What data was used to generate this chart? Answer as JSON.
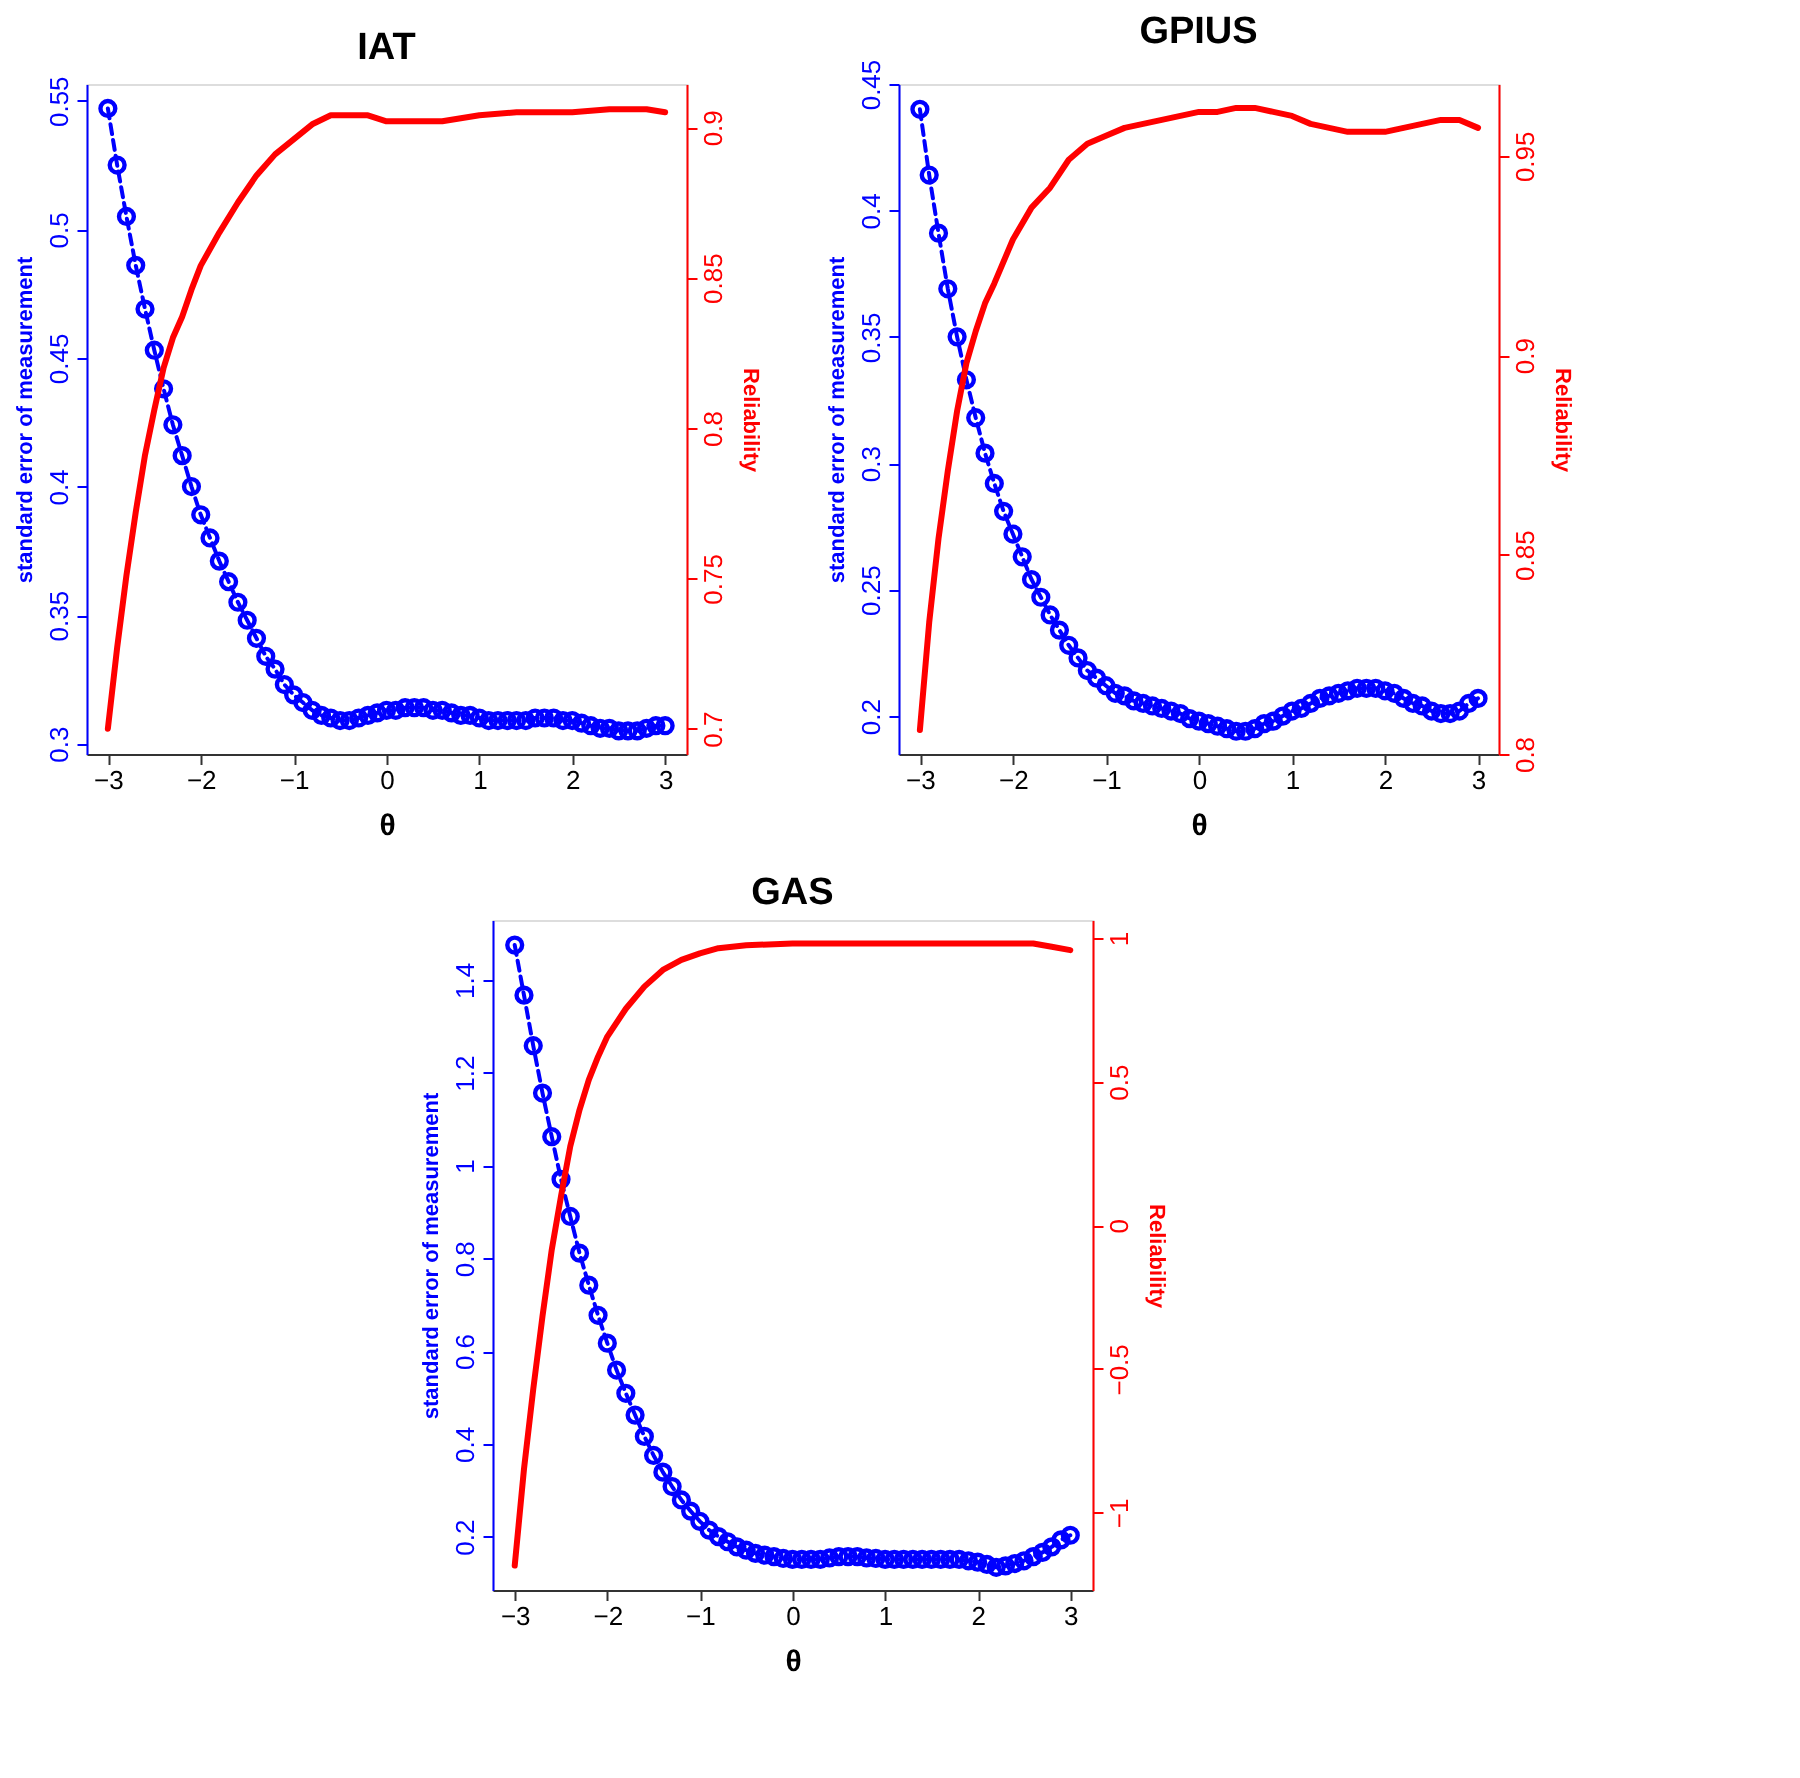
{
  "chart_data": [
    {
      "type": "line",
      "title": "IAT",
      "xlabel": "θ",
      "ylabel": "standard error of measurement",
      "y2label": "Reliability",
      "grid": false,
      "xlim": [
        -3.23,
        3.23
      ],
      "xticks": [
        -3,
        -2,
        -1,
        0,
        1,
        2,
        3
      ],
      "ylim": [
        0.296,
        0.5565
      ],
      "yticks": [
        0.3,
        0.35,
        0.4,
        0.45,
        0.5,
        0.55
      ],
      "y2lim": [
        0.6916,
        0.9144
      ],
      "y2ticks": [
        0.7,
        0.75,
        0.8,
        0.85,
        0.9
      ],
      "series": [
        {
          "color": "#0000ff",
          "marker": "circle",
          "line_style": "dashed",
          "x": [
            -3,
            -2.9,
            -2.8,
            -2.7,
            -2.6,
            -2.5,
            -2.4,
            -2.3,
            -2.2,
            -2.1,
            -2,
            -1.9,
            -1.8,
            -1.7,
            -1.6,
            -1.5,
            -1.4,
            -1.3,
            -1.2,
            -1.1,
            -1,
            -0.9,
            -0.8,
            -0.7,
            -0.6,
            -0.5,
            -0.4,
            -0.3,
            -0.2,
            -0.1,
            0,
            0.1,
            0.2,
            0.3,
            0.4,
            0.5,
            0.6,
            0.7,
            0.8,
            0.9,
            1,
            1.1,
            1.2,
            1.3,
            1.4,
            1.5,
            1.6,
            1.7,
            1.8,
            1.9,
            2,
            2.1,
            2.2,
            2.3,
            2.4,
            2.5,
            2.6,
            2.7,
            2.8,
            2.9,
            3
          ],
          "values": [
            0.547,
            0.525,
            0.505,
            0.486,
            0.469,
            0.453,
            0.438,
            0.424,
            0.412,
            0.4,
            0.389,
            0.38,
            0.371,
            0.363,
            0.355,
            0.348,
            0.341,
            0.334,
            0.329,
            0.323,
            0.319,
            0.316,
            0.313,
            0.311,
            0.31,
            0.309,
            0.309,
            0.31,
            0.311,
            0.312,
            0.313,
            0.313,
            0.314,
            0.314,
            0.314,
            0.313,
            0.313,
            0.312,
            0.311,
            0.311,
            0.31,
            0.309,
            0.309,
            0.309,
            0.309,
            0.309,
            0.31,
            0.31,
            0.31,
            0.309,
            0.309,
            0.308,
            0.307,
            0.306,
            0.306,
            0.305,
            0.305,
            0.305,
            0.306,
            0.307,
            0.307
          ]
        },
        {
          "color": "#ff0000",
          "marker": "none",
          "line_style": "solid",
          "axis": "y2",
          "x": [
            -3,
            -2.9,
            -2.8,
            -2.7,
            -2.6,
            -2.5,
            -2.4,
            -2.3,
            -2.2,
            -2.1,
            -2,
            -1.8,
            -1.6,
            -1.4,
            -1.2,
            -1,
            -0.8,
            -0.6,
            -0.4,
            -0.2,
            0,
            0.2,
            0.4,
            0.6,
            0.8,
            1,
            1.4,
            2,
            2.4,
            2.8,
            3
          ],
          "values": [
            0.7,
            0.727,
            0.751,
            0.772,
            0.791,
            0.806,
            0.82,
            0.83,
            0.837,
            0.846,
            0.854,
            0.865,
            0.875,
            0.884,
            0.891,
            0.896,
            0.901,
            0.904,
            0.904,
            0.904,
            0.902,
            0.902,
            0.902,
            0.902,
            0.903,
            0.904,
            0.905,
            0.905,
            0.906,
            0.906,
            0.905
          ]
        }
      ]
    },
    {
      "type": "line",
      "title": "GPIUS",
      "xlabel": "θ",
      "ylabel": "standard error of measurement",
      "y2label": "Reliability",
      "grid": false,
      "xlim": [
        -3.23,
        3.22
      ],
      "xticks": [
        -3,
        -2,
        -1,
        0,
        1,
        2,
        3
      ],
      "ylim": [
        0.185,
        0.45
      ],
      "yticks": [
        0.2,
        0.25,
        0.3,
        0.35,
        0.4,
        0.45
      ],
      "y2lim": [
        0.8,
        0.968
      ],
      "y2ticks": [
        0.8,
        0.85,
        0.9,
        0.95
      ],
      "series": [
        {
          "color": "#0000ff",
          "marker": "circle",
          "line_style": "dashed",
          "x": [
            -3,
            -2.9,
            -2.8,
            -2.7,
            -2.6,
            -2.5,
            -2.4,
            -2.3,
            -2.2,
            -2.1,
            -2,
            -1.9,
            -1.8,
            -1.7,
            -1.6,
            -1.5,
            -1.4,
            -1.3,
            -1.2,
            -1.1,
            -1,
            -0.9,
            -0.8,
            -0.7,
            -0.6,
            -0.5,
            -0.4,
            -0.3,
            -0.2,
            -0.1,
            0,
            0.1,
            0.2,
            0.3,
            0.4,
            0.5,
            0.6,
            0.7,
            0.8,
            0.9,
            1,
            1.1,
            1.2,
            1.3,
            1.4,
            1.5,
            1.6,
            1.7,
            1.8,
            1.9,
            2,
            2.1,
            2.2,
            2.3,
            2.4,
            2.5,
            2.6,
            2.7,
            2.8,
            2.9,
            3
          ],
          "values": [
            0.44,
            0.414,
            0.391,
            0.369,
            0.35,
            0.333,
            0.318,
            0.304,
            0.292,
            0.281,
            0.272,
            0.263,
            0.254,
            0.247,
            0.24,
            0.234,
            0.228,
            0.223,
            0.218,
            0.215,
            0.212,
            0.209,
            0.208,
            0.206,
            0.205,
            0.204,
            0.203,
            0.202,
            0.201,
            0.199,
            0.198,
            0.197,
            0.196,
            0.195,
            0.194,
            0.194,
            0.195,
            0.197,
            0.198,
            0.2,
            0.202,
            0.203,
            0.205,
            0.207,
            0.208,
            0.209,
            0.21,
            0.211,
            0.211,
            0.211,
            0.21,
            0.209,
            0.207,
            0.205,
            0.204,
            0.202,
            0.201,
            0.201,
            0.202,
            0.205,
            0.207
          ]
        },
        {
          "color": "#ff0000",
          "marker": "none",
          "line_style": "solid",
          "axis": "y2",
          "x": [
            -3,
            -2.9,
            -2.8,
            -2.7,
            -2.6,
            -2.5,
            -2.4,
            -2.3,
            -2.2,
            -2,
            -1.8,
            -1.6,
            -1.4,
            -1.2,
            -1,
            -0.8,
            -0.6,
            -0.4,
            -0.2,
            0,
            0.2,
            0.4,
            0.6,
            0.8,
            1,
            1.2,
            1.4,
            1.6,
            1.8,
            2,
            2.2,
            2.4,
            2.6,
            2.8,
            3
          ],
          "values": [
            0.806,
            0.833,
            0.854,
            0.871,
            0.886,
            0.898,
            0.906,
            0.913,
            0.918,
            0.929,
            0.937,
            0.942,
            0.949,
            0.953,
            0.955,
            0.957,
            0.958,
            0.959,
            0.96,
            0.961,
            0.961,
            0.962,
            0.962,
            0.961,
            0.96,
            0.958,
            0.957,
            0.956,
            0.956,
            0.956,
            0.957,
            0.958,
            0.959,
            0.959,
            0.957
          ]
        }
      ]
    },
    {
      "type": "line",
      "title": "GAS",
      "xlabel": "θ",
      "ylabel": "standard error of measurement",
      "y2label": "Reliability",
      "grid": false,
      "xlim": [
        -3.24,
        3.24
      ],
      "xticks": [
        -3,
        -2,
        -1,
        0,
        1,
        2,
        3
      ],
      "ylim": [
        0.085,
        1.529
      ],
      "yticks": [
        0.2,
        0.4,
        0.6,
        0.8,
        1,
        1.2,
        1.4
      ],
      "y2lim": [
        -1.27,
        1.063
      ],
      "y2ticks": [
        -1,
        -0.5,
        0,
        0.5,
        1
      ],
      "series": [
        {
          "color": "#0000ff",
          "marker": "circle",
          "line_style": "dashed",
          "x": [
            -3,
            -2.9,
            -2.8,
            -2.7,
            -2.6,
            -2.5,
            -2.4,
            -2.3,
            -2.2,
            -2.1,
            -2,
            -1.9,
            -1.8,
            -1.7,
            -1.6,
            -1.5,
            -1.4,
            -1.3,
            -1.2,
            -1.1,
            -1,
            -0.9,
            -0.8,
            -0.7,
            -0.6,
            -0.5,
            -0.4,
            -0.3,
            -0.2,
            -0.1,
            0,
            0.1,
            0.2,
            0.3,
            0.4,
            0.5,
            0.6,
            0.7,
            0.8,
            0.9,
            1,
            1.1,
            1.2,
            1.3,
            1.4,
            1.5,
            1.6,
            1.7,
            1.8,
            1.9,
            2,
            2.1,
            2.2,
            2.3,
            2.4,
            2.5,
            2.6,
            2.7,
            2.8,
            2.9,
            3
          ],
          "values": [
            1.475,
            1.367,
            1.258,
            1.156,
            1.062,
            0.97,
            0.89,
            0.811,
            0.742,
            0.677,
            0.617,
            0.559,
            0.509,
            0.462,
            0.416,
            0.375,
            0.339,
            0.308,
            0.279,
            0.255,
            0.233,
            0.214,
            0.2,
            0.189,
            0.178,
            0.171,
            0.164,
            0.16,
            0.157,
            0.153,
            0.151,
            0.151,
            0.151,
            0.151,
            0.154,
            0.157,
            0.157,
            0.157,
            0.154,
            0.153,
            0.151,
            0.151,
            0.151,
            0.151,
            0.151,
            0.151,
            0.151,
            0.151,
            0.151,
            0.148,
            0.145,
            0.14,
            0.134,
            0.137,
            0.142,
            0.148,
            0.157,
            0.166,
            0.178,
            0.193,
            0.203
          ]
        },
        {
          "color": "#ff0000",
          "marker": "none",
          "line_style": "solid",
          "axis": "y2",
          "x": [
            -3,
            -2.9,
            -2.8,
            -2.7,
            -2.6,
            -2.5,
            -2.4,
            -2.3,
            -2.2,
            -2.1,
            -2,
            -1.8,
            -1.6,
            -1.4,
            -1.2,
            -1,
            -0.8,
            -0.5,
            0,
            1,
            2,
            2.6,
            2.8,
            3
          ],
          "values": [
            -1.185,
            -0.849,
            -0.571,
            -0.316,
            -0.085,
            0.101,
            0.275,
            0.402,
            0.506,
            0.587,
            0.657,
            0.754,
            0.831,
            0.889,
            0.924,
            0.947,
            0.965,
            0.975,
            0.981,
            0.981,
            0.981,
            0.981,
            0.97,
            0.958
          ]
        }
      ]
    }
  ]
}
